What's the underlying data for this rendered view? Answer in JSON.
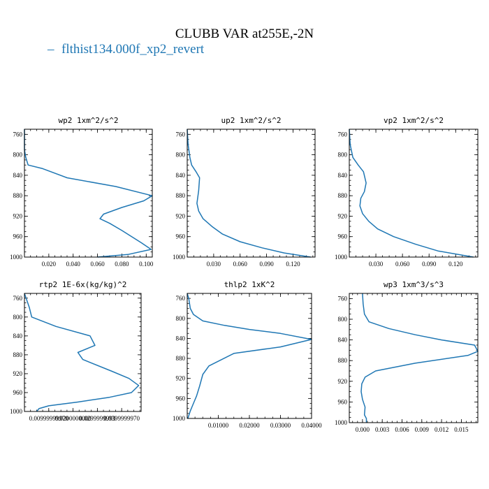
{
  "title": "CLUBB VAR at255E,-2N",
  "legend": {
    "label": "flthist134.000f_xp2_revert",
    "color": "#1f77b4"
  },
  "chart_data": [
    {
      "type": "line",
      "title": "wp2  1xm^2/s^2",
      "xlim": [
        0,
        0.105
      ],
      "ylim": [
        1000,
        750
      ],
      "xticks": [
        0.02,
        0.04,
        0.06,
        0.08,
        0.1
      ],
      "xtick_labels": [
        "0.020",
        "0.040",
        "0.060",
        "0.080",
        "0.100"
      ],
      "yticks": [
        760,
        800,
        840,
        880,
        920,
        960,
        1000
      ],
      "ytick_labels": [
        "760",
        "800",
        "840",
        "880",
        "920",
        "960",
        "1000"
      ],
      "series": [
        {
          "x": [
            0,
            0,
            0,
            0.001,
            0.003,
            0.015,
            0.035,
            0.075,
            0.105,
            0.098,
            0.08,
            0.065,
            0.062,
            0.07,
            0.08,
            0.096,
            0.104,
            0.085,
            0.06
          ],
          "y": [
            750,
            770,
            790,
            804,
            820,
            827,
            845,
            862,
            880,
            890,
            903,
            916,
            925,
            934,
            948,
            972,
            985,
            995,
            1000
          ]
        }
      ]
    },
    {
      "type": "line",
      "title": "up2  1xm^2/s^2",
      "xlim": [
        0,
        0.145
      ],
      "ylim": [
        1000,
        750
      ],
      "xticks": [
        0.03,
        0.06,
        0.09,
        0.12
      ],
      "xtick_labels": [
        "0.030",
        "0.060",
        "0.090",
        "0.120"
      ],
      "yticks": [
        760,
        800,
        840,
        880,
        920,
        960,
        1000
      ],
      "ytick_labels": [
        "760",
        "800",
        "840",
        "880",
        "920",
        "960",
        "1000"
      ],
      "series": [
        {
          "x": [
            0,
            0.001,
            0.003,
            0.005,
            0.01,
            0.014,
            0.013,
            0.011,
            0.013,
            0.018,
            0.028,
            0.04,
            0.06,
            0.085,
            0.11,
            0.14
          ],
          "y": [
            750,
            780,
            805,
            820,
            833,
            845,
            870,
            895,
            910,
            925,
            940,
            955,
            970,
            982,
            992,
            1000
          ]
        }
      ]
    },
    {
      "type": "line",
      "title": "vp2  1xm^2/s^2",
      "xlim": [
        0,
        0.145
      ],
      "ylim": [
        1000,
        750
      ],
      "xticks": [
        0.03,
        0.06,
        0.09,
        0.12
      ],
      "xtick_labels": [
        "0.030",
        "0.060",
        "0.090",
        "0.120"
      ],
      "yticks": [
        760,
        800,
        840,
        880,
        920,
        960,
        1000
      ],
      "ytick_labels": [
        "760",
        "800",
        "840",
        "880",
        "920",
        "960",
        "1000"
      ],
      "series": [
        {
          "x": [
            0,
            0.001,
            0.004,
            0.01,
            0.016,
            0.019,
            0.017,
            0.013,
            0.012,
            0.015,
            0.022,
            0.032,
            0.05,
            0.075,
            0.1,
            0.14
          ],
          "y": [
            750,
            780,
            805,
            820,
            833,
            855,
            872,
            885,
            900,
            915,
            930,
            945,
            960,
            975,
            988,
            1000
          ]
        }
      ]
    },
    {
      "type": "line",
      "title": "rtp2  1E-6x(kg/kg)^2",
      "xlim": [
        0,
        0.00048
      ],
      "ylim": [
        1000,
        750
      ],
      "xticks": [
        0.0001,
        0.0002,
        0.0003,
        0.0004
      ],
      "xtick_labels": [
        "0.00999999970",
        "0.0200000000",
        "0.0299999993",
        "0.0399999970"
      ],
      "yticks": [
        760,
        800,
        840,
        880,
        920,
        960,
        1000
      ],
      "ytick_labels": [
        "760",
        "800",
        "840",
        "880",
        "920",
        "960",
        "1000"
      ],
      "series": [
        {
          "x": [
            0,
            1e-05,
            2e-05,
            3e-05,
            0.00013,
            0.00027,
            0.00029,
            0.00022,
            0.00024,
            0.00036,
            0.00043,
            0.00047,
            0.00044,
            0.00035,
            0.00022,
            0.0001,
            6e-05,
            5e-05
          ],
          "y": [
            750,
            765,
            780,
            800,
            820,
            840,
            860,
            875,
            890,
            915,
            930,
            945,
            960,
            970,
            980,
            988,
            994,
            1000
          ]
        }
      ]
    },
    {
      "type": "line",
      "title": "thlp2  1xK^2",
      "xlim": [
        0,
        0.04
      ],
      "ylim": [
        1000,
        750
      ],
      "xticks": [
        0.01,
        0.02,
        0.03,
        0.04
      ],
      "xtick_labels": [
        "0.01000",
        "0.02000",
        "0.03000",
        "0.04000"
      ],
      "yticks": [
        760,
        800,
        840,
        880,
        920,
        960,
        1000
      ],
      "ytick_labels": [
        "760",
        "800",
        "840",
        "880",
        "920",
        "960",
        "1000"
      ],
      "series": [
        {
          "x": [
            0,
            0.0005,
            0.001,
            0.002,
            0.005,
            0.012,
            0.02,
            0.03,
            0.04,
            0.03,
            0.015,
            0.007,
            0.005,
            0.004,
            0.003,
            0.002,
            0.001,
            0.0002
          ],
          "y": [
            750,
            760,
            780,
            792,
            805,
            814,
            822,
            830,
            842,
            857,
            870,
            895,
            912,
            935,
            955,
            970,
            985,
            1000
          ]
        }
      ]
    },
    {
      "type": "line",
      "title": "wp3  1xm^3/s^3",
      "xlim": [
        -0.002,
        0.0175
      ],
      "ylim": [
        1000,
        750
      ],
      "xticks": [
        0,
        0.003,
        0.006,
        0.009,
        0.012,
        0.015
      ],
      "xtick_labels": [
        "0.000",
        "0.003",
        "0.006",
        "0.009",
        "0.012",
        "0.015"
      ],
      "yticks": [
        760,
        800,
        840,
        880,
        920,
        960,
        1000
      ],
      "ytick_labels": [
        "760",
        "800",
        "840",
        "880",
        "920",
        "960",
        "1000"
      ],
      "series": [
        {
          "x": [
            0,
            0.0001,
            0.0003,
            0.001,
            0.004,
            0.008,
            0.012,
            0.017,
            0.0175,
            0.016,
            0.008,
            0.002,
            0.0004,
            -0.0001,
            -0.0002,
            0,
            0.0004,
            0.0003,
            0.0006,
            0.0006
          ],
          "y": [
            750,
            770,
            790,
            805,
            818,
            830,
            840,
            850,
            862,
            870,
            885,
            900,
            912,
            925,
            940,
            955,
            970,
            985,
            992,
            1000
          ]
        }
      ]
    }
  ]
}
